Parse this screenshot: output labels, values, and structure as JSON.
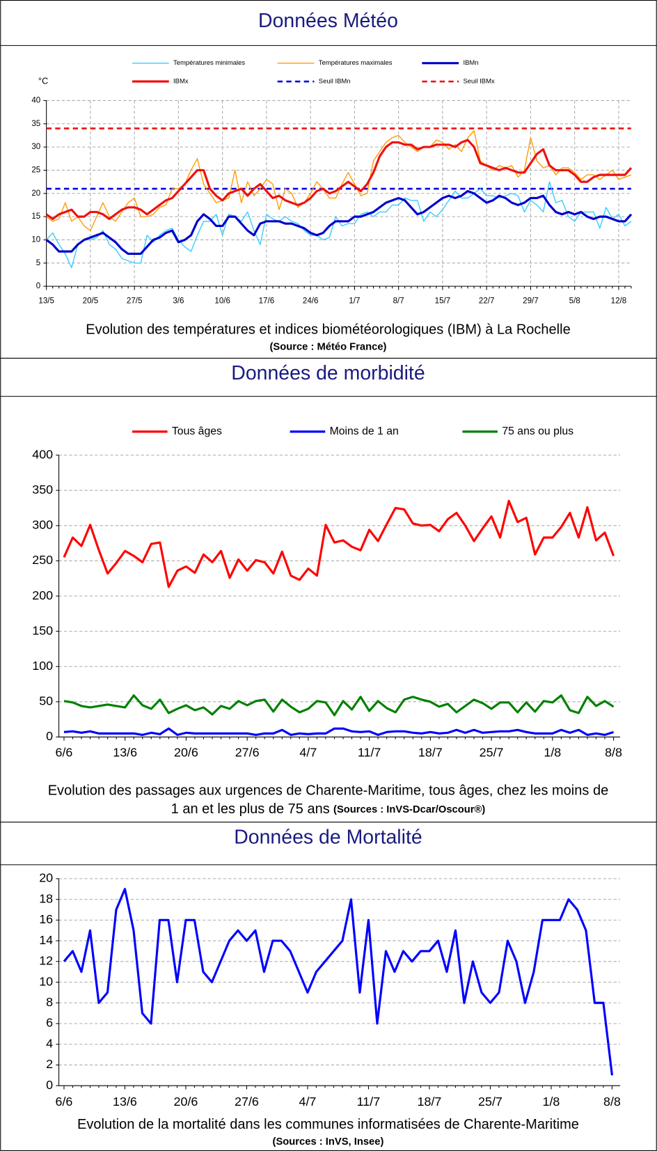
{
  "chart_data": [
    {
      "type": "line",
      "heading": "Données Météo",
      "caption": [
        "Evolution des températures et indices biométéorologiques (IBM) à La Rochelle"
      ],
      "source": "(Source : Météo France)",
      "y_label": "°C",
      "categories": [
        "13/5",
        null,
        null,
        null,
        null,
        null,
        null,
        "20/5",
        null,
        null,
        null,
        null,
        null,
        null,
        "27/5",
        null,
        null,
        null,
        null,
        null,
        null,
        "3/6",
        null,
        null,
        null,
        null,
        null,
        null,
        "10/6",
        null,
        null,
        null,
        null,
        null,
        null,
        "17/6",
        null,
        null,
        null,
        null,
        null,
        null,
        "24/6",
        null,
        null,
        null,
        null,
        null,
        null,
        "1/7",
        null,
        null,
        null,
        null,
        null,
        null,
        "8/7",
        null,
        null,
        null,
        null,
        null,
        null,
        "15/7",
        null,
        null,
        null,
        null,
        null,
        null,
        "22/7",
        null,
        null,
        null,
        null,
        null,
        null,
        "29/7",
        null,
        null,
        null,
        null,
        null,
        null,
        "5/8",
        null,
        null,
        null,
        null,
        null,
        null,
        "12/8",
        null,
        null
      ],
      "series": [
        {
          "name": "Températures minimales",
          "color": "#33ccff",
          "values": [
            10,
            11.5,
            9,
            7,
            4,
            9,
            10,
            10,
            10.5,
            12,
            9,
            8,
            6,
            5.5,
            5,
            5,
            11,
            9.5,
            11,
            12,
            12.5,
            10,
            8.5,
            7.5,
            11,
            14,
            14,
            15.5,
            11,
            15.5,
            15,
            14,
            16,
            12,
            9,
            15.5,
            14.5,
            14,
            15,
            14,
            13.5,
            12,
            11,
            11,
            10,
            10.5,
            15,
            13,
            13.5,
            13.5,
            15.5,
            16,
            15,
            16,
            16,
            17.5,
            17.5,
            19,
            18.5,
            18.5,
            14,
            16,
            15,
            16.5,
            18.5,
            20.5,
            19,
            19,
            20,
            21,
            19.5,
            19.5,
            19,
            19.5,
            20,
            19.5,
            16,
            18.5,
            17.5,
            16,
            22.5,
            18,
            18.5,
            15,
            14,
            16,
            16,
            16,
            12.5,
            17,
            14.5,
            15.5,
            13,
            14
          ]
        },
        {
          "name": "Températures maximales",
          "color": "#ff9900",
          "values": [
            15,
            14,
            14.5,
            18,
            14,
            15,
            13,
            12,
            15,
            18,
            15,
            14,
            16,
            18,
            19,
            15,
            15,
            15.5,
            17,
            17.5,
            21,
            21,
            22,
            25,
            27.5,
            22,
            20,
            18,
            18.5,
            19,
            25,
            18,
            22.5,
            19.5,
            21,
            23,
            22,
            16.5,
            21,
            20,
            17,
            18,
            20,
            22.5,
            21,
            19,
            19,
            22,
            24.5,
            22,
            19.5,
            20,
            27,
            29,
            31,
            32,
            32.5,
            31,
            30,
            29,
            30,
            30,
            31.5,
            31,
            29.5,
            30.5,
            29,
            32,
            33.5,
            27,
            26,
            25,
            26,
            25.5,
            26,
            23.5,
            25,
            32,
            27,
            25.5,
            26,
            24,
            25.5,
            25.5,
            24.5,
            23,
            24,
            24,
            23,
            24,
            25,
            23,
            23.5,
            24
          ]
        },
        {
          "name": "IBMn",
          "color": "#0000cc",
          "values": [
            10,
            9,
            7.5,
            7.5,
            7.5,
            9,
            10,
            10.5,
            11,
            11.5,
            10.5,
            9.5,
            8,
            7,
            7,
            7,
            8.5,
            10,
            10.5,
            11.5,
            12,
            9.5,
            10,
            11,
            14,
            15.5,
            14.5,
            13,
            13,
            15,
            15,
            13.5,
            12,
            11,
            13.5,
            14,
            14,
            14,
            13.5,
            13.5,
            13,
            12.5,
            11.5,
            11,
            11.5,
            13,
            14,
            14,
            14,
            15,
            15,
            15.5,
            16,
            17,
            18,
            18.5,
            19,
            18.5,
            17,
            15.5,
            16,
            17,
            18,
            19,
            19.5,
            19,
            19.5,
            20.5,
            20,
            19,
            18,
            18.5,
            19.5,
            19,
            18,
            17.5,
            18,
            19,
            19,
            19.5,
            17.5,
            16,
            15.5,
            16,
            15.5,
            16,
            15,
            14.5,
            15,
            15,
            14.5,
            14,
            14,
            15.5
          ]
        },
        {
          "name": "IBMx",
          "color": "#ee1111",
          "values": [
            15.5,
            14.5,
            15.5,
            16,
            16.5,
            15,
            15,
            16,
            16,
            15.5,
            14.5,
            15.5,
            16.5,
            17,
            17,
            16.5,
            15.5,
            16.5,
            17.5,
            18.5,
            19,
            20.5,
            22,
            23.5,
            25,
            25,
            21,
            19.5,
            18.5,
            20,
            20.5,
            21,
            19.5,
            21,
            22,
            20.5,
            19,
            19.5,
            18.5,
            18,
            17.5,
            18,
            19,
            20.5,
            21,
            20,
            20.5,
            21.5,
            22.5,
            21.5,
            20.5,
            22,
            24.5,
            28,
            30,
            31,
            31,
            30.5,
            30.5,
            29.5,
            30,
            30,
            30.5,
            30.5,
            30.5,
            30,
            31,
            31.5,
            30,
            26.5,
            26,
            25.5,
            25,
            25.5,
            25,
            24.5,
            24.5,
            26.5,
            28.5,
            29.5,
            26,
            25,
            25,
            25,
            24,
            22.5,
            22.5,
            23.5,
            24,
            24,
            24,
            24,
            24,
            25.5
          ]
        }
      ],
      "thresholds": [
        {
          "name": "Seuil IBMn",
          "color": "#0000dd",
          "value": 21
        },
        {
          "name": "Seuil IBMx",
          "color": "#ee1111",
          "value": 34
        }
      ],
      "ylim": [
        0,
        40
      ],
      "yticks": [
        0,
        5,
        10,
        15,
        20,
        25,
        30,
        35,
        40
      ],
      "grid": true
    },
    {
      "type": "line",
      "heading": "Données de morbidité",
      "caption": [
        "Evolution des passages aux urgences de Charente-Maritime, tous âges, chez les moins de",
        "1 an et les plus de 75 ans"
      ],
      "source": "(Sources : InVS-Dcar/Oscour®)",
      "categories": [
        "6/6",
        null,
        null,
        null,
        null,
        null,
        null,
        "13/6",
        null,
        null,
        null,
        null,
        null,
        null,
        "20/6",
        null,
        null,
        null,
        null,
        null,
        null,
        "27/6",
        null,
        null,
        null,
        null,
        null,
        null,
        "4/7",
        null,
        null,
        null,
        null,
        null,
        null,
        "11/7",
        null,
        null,
        null,
        null,
        null,
        null,
        "18/7",
        null,
        null,
        null,
        null,
        null,
        null,
        "25/7",
        null,
        null,
        null,
        null,
        null,
        null,
        "1/8",
        null,
        null,
        null,
        null,
        null,
        null,
        "8/8"
      ],
      "series": [
        {
          "name": "Tous âges",
          "color": "#ff0000",
          "values": [
            255,
            283,
            271,
            301,
            265,
            232,
            247,
            264,
            257,
            248,
            274,
            276,
            213,
            236,
            242,
            233,
            259,
            248,
            264,
            226,
            252,
            236,
            251,
            248,
            232,
            263,
            229,
            223,
            239,
            229,
            301,
            276,
            279,
            270,
            265,
            294,
            278,
            302,
            325,
            323,
            303,
            300,
            301,
            292,
            309,
            318,
            300,
            278,
            296,
            313,
            283,
            335,
            305,
            311,
            259,
            283,
            283,
            298,
            318,
            283,
            326,
            279,
            290,
            257
          ]
        },
        {
          "name": "Moins de 1 an",
          "color": "#0000ff",
          "values": [
            7,
            8,
            6,
            8,
            5,
            5,
            5,
            5,
            5,
            3,
            6,
            4,
            12,
            3,
            6,
            5,
            5,
            5,
            5,
            5,
            5,
            5,
            3,
            5,
            5,
            10,
            3,
            5,
            4,
            5,
            5,
            12,
            12,
            8,
            7,
            8,
            3,
            7,
            8,
            8,
            6,
            5,
            7,
            5,
            6,
            10,
            6,
            10,
            6,
            7,
            8,
            8,
            10,
            7,
            5,
            5,
            5,
            10,
            6,
            10,
            3,
            5,
            3,
            7
          ]
        },
        {
          "name": "75 ans ou plus",
          "color": "#008000",
          "values": [
            51,
            49,
            44,
            42,
            44,
            46,
            44,
            42,
            59,
            45,
            40,
            53,
            34,
            40,
            45,
            38,
            42,
            32,
            44,
            40,
            51,
            45,
            51,
            53,
            36,
            53,
            43,
            35,
            40,
            51,
            49,
            31,
            51,
            39,
            57,
            37,
            51,
            41,
            35,
            53,
            57,
            53,
            50,
            43,
            47,
            35,
            44,
            53,
            48,
            40,
            49,
            49,
            35,
            49,
            36,
            51,
            49,
            59,
            38,
            34,
            57,
            44,
            51,
            43
          ]
        }
      ],
      "ylim": [
        0,
        400
      ],
      "yticks": [
        0,
        50,
        100,
        150,
        200,
        250,
        300,
        350,
        400
      ],
      "grid": true
    },
    {
      "type": "line",
      "heading": "Données de Mortalité",
      "caption": [
        "Evolution de la mortalité dans les communes informatisées de Charente-Maritime"
      ],
      "source": "(Sources : InVS, Insee)",
      "categories": [
        "6/6",
        null,
        null,
        null,
        null,
        null,
        null,
        "13/6",
        null,
        null,
        null,
        null,
        null,
        null,
        "20/6",
        null,
        null,
        null,
        null,
        null,
        null,
        "27/6",
        null,
        null,
        null,
        null,
        null,
        null,
        "4/7",
        null,
        null,
        null,
        null,
        null,
        null,
        "11/7",
        null,
        null,
        null,
        null,
        null,
        null,
        "18/7",
        null,
        null,
        null,
        null,
        null,
        null,
        "25/7",
        null,
        null,
        null,
        null,
        null,
        null,
        "1/8",
        null,
        null,
        null,
        null,
        null,
        null,
        "8/8"
      ],
      "values": [
        12,
        13,
        11,
        15,
        8,
        9,
        17,
        19,
        15,
        7,
        6,
        16,
        16,
        10,
        16,
        16,
        11,
        10,
        12,
        14,
        15,
        14,
        15,
        11,
        14,
        14,
        13,
        11,
        9,
        11,
        12,
        13,
        14,
        18,
        9,
        16,
        6,
        13,
        11,
        13,
        12,
        13,
        13,
        14,
        11,
        15,
        8,
        12,
        9,
        8,
        9,
        14,
        12,
        8,
        11,
        16,
        16,
        16,
        18,
        17,
        15,
        8,
        8,
        1
      ],
      "color": "#0000ff",
      "ylim": [
        0,
        20
      ],
      "yticks": [
        0,
        2,
        4,
        6,
        8,
        10,
        12,
        14,
        16,
        18,
        20
      ],
      "grid": true
    }
  ]
}
